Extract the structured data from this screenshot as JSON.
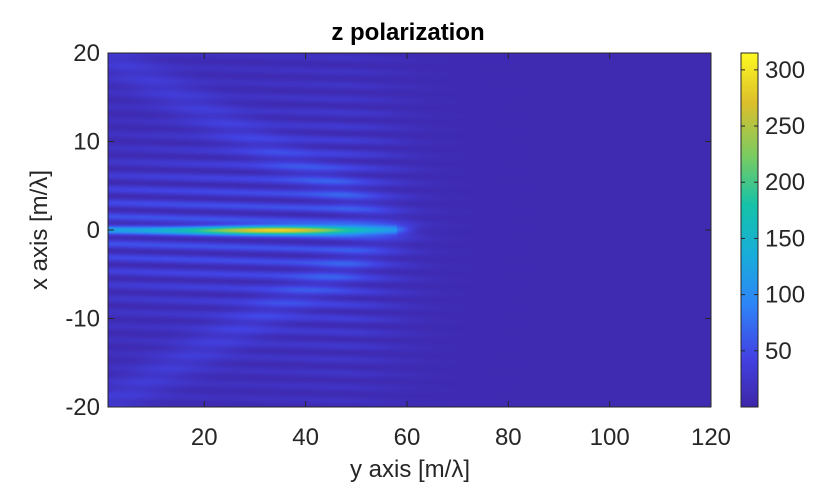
{
  "chart_data": {
    "type": "heatmap",
    "title": "z polarization",
    "xlabel": "y axis [m/λ]",
    "ylabel": "x axis [m/λ]",
    "xlim": [
      1,
      120
    ],
    "ylim": [
      -20,
      20
    ],
    "xticks": [
      20,
      40,
      60,
      80,
      100,
      120
    ],
    "yticks": [
      20,
      10,
      0,
      -10,
      -20
    ],
    "colorbar": {
      "range": [
        0,
        315
      ],
      "ticks": [
        300,
        250,
        200,
        150,
        100,
        50
      ],
      "colormap": "parula",
      "colors": [
        "#3e26a8",
        "#4242e3",
        "#2e85f7",
        "#18adda",
        "#15c2a8",
        "#7bcb61",
        "#dcbf2b",
        "#fef921"
      ]
    },
    "features": {
      "central_beam": {
        "x_extent": [
          1,
          58
        ],
        "y": 0,
        "peak_x": 35,
        "peak_value": 310
      },
      "fringe_region": {
        "x_extent": [
          1,
          60
        ],
        "y_extent": [
          -20,
          20
        ]
      },
      "background_level": 8
    }
  }
}
